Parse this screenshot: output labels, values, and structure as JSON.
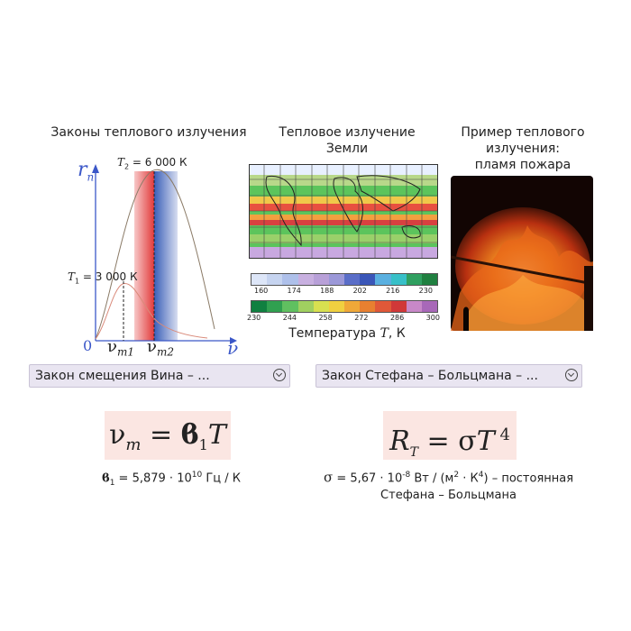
{
  "diagram": {
    "caption": "Законы теплового излучения",
    "y_axis": "r",
    "y_axis_sub": "n",
    "x_axis": "ν",
    "origin": "0",
    "label_T2": "T",
    "label_T2_sub": "2",
    "label_T2_value": " = 6 000 К",
    "label_T1": "T",
    "label_T1_sub": "1",
    "label_T1_value": " = 3 000 К",
    "label_vm1": "ν",
    "label_vm1_sub": "m1",
    "label_vm2": "ν",
    "label_vm2_sub": "m2"
  },
  "earth_map": {
    "caption_line1": "Тепловое  излучение",
    "caption_line2": "Земли",
    "scale_top": [
      "160",
      "174",
      "188",
      "202",
      "216",
      "230"
    ],
    "scale_bottom": [
      "230",
      "244",
      "258",
      "272",
      "286",
      "300"
    ],
    "temp_label": "Температура ",
    "temp_symbol": "T",
    "temp_unit": ", К"
  },
  "fire": {
    "caption_line1": "Пример теплового",
    "caption_line2": "излучения:",
    "caption_line3": "пламя пожара"
  },
  "dropdowns": {
    "wien": "Закон смещения Вина – ...",
    "stefan": "Закон Стефана – Больцмана – ..."
  },
  "wien_formula": {
    "lhs": "ν",
    "lhs_sub": "m",
    "eq": " = ",
    "const": "ϐ",
    "const_sub": "1",
    "var": "T"
  },
  "wien_note": {
    "const": "ϐ",
    "const_sub": "1",
    "text": " = 5,879 · 10",
    "exp": "10",
    "unit": " Гц / К"
  },
  "stefan_formula": {
    "lhs": "R",
    "lhs_sub": "T",
    "eq": " = σ",
    "var": "T",
    "exp": " 4"
  },
  "stefan_note": {
    "sigma": "σ",
    "text": " = 5,67 · 10",
    "exp": "-8",
    "unit1": " Вт / (м",
    "exp2": "2",
    "unit2": " · К",
    "exp3": "4",
    "unit3": ") – постоянная",
    "line2": "Стефана – Больцмана"
  }
}
